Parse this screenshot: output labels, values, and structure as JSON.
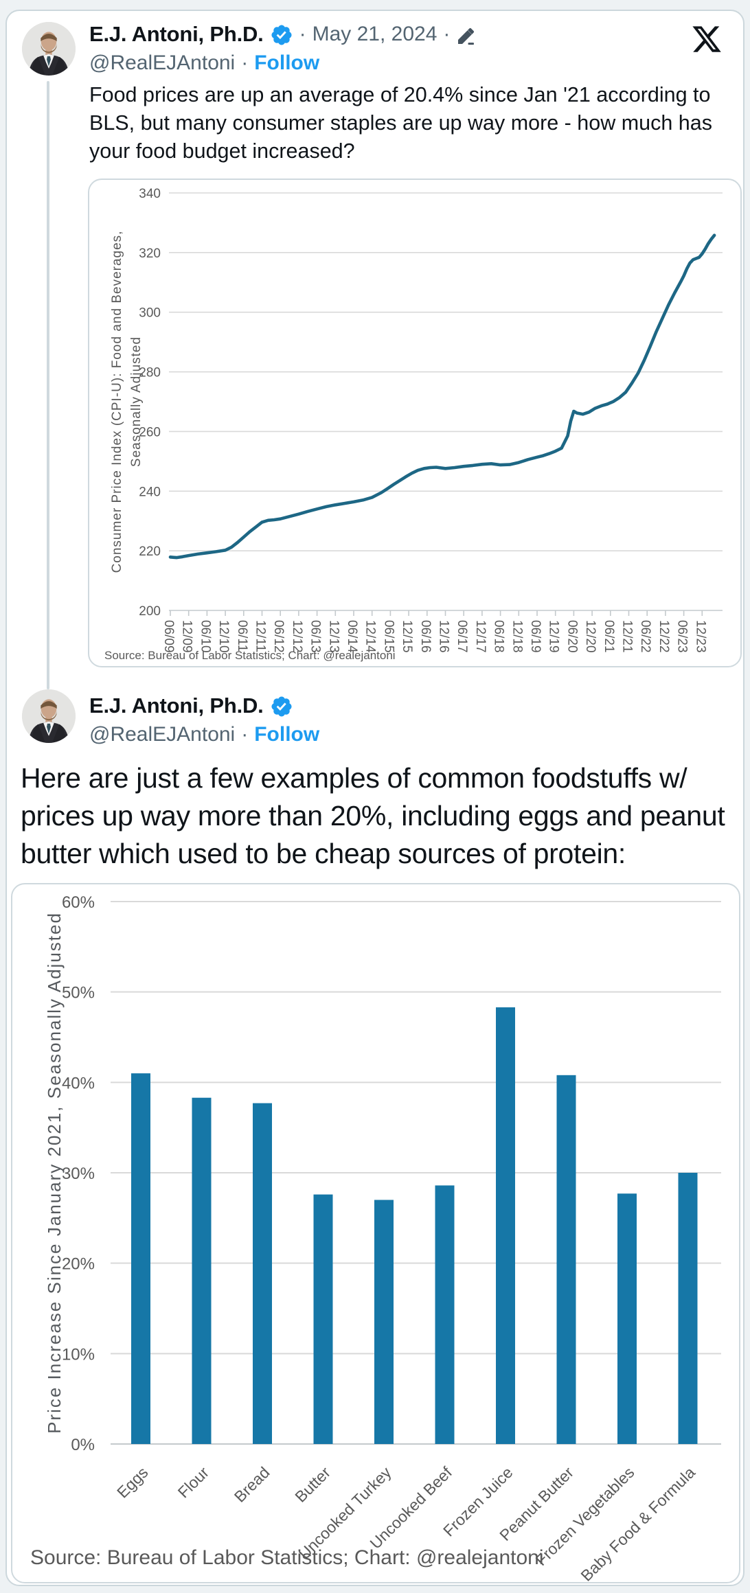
{
  "colors": {
    "accent_blue": "#1d9bf0",
    "text_dark": "#0f1419",
    "text_gray": "#536471",
    "line_series": "#1d6785",
    "bar_fill": "#1677a7",
    "gridline": "#d9d9d9",
    "axis_line": "#c4cacd",
    "chart_text": "#595959"
  },
  "tweet1": {
    "name": "E.J. Antoni, Ph.D.",
    "sep1": "·",
    "date": "May 21, 2024",
    "sep2": "·",
    "handle": "@RealEJAntoni",
    "sep3": "·",
    "follow_label": "Follow",
    "lines": [
      "Food prices are up an average of 20.4% since Jan '21 according to",
      "BLS, but many consumer staples are up way more - how much has",
      "your food budget increased?"
    ]
  },
  "tweet2": {
    "name": "E.J. Antoni, Ph.D.",
    "handle": "@RealEJAntoni",
    "sep": "·",
    "follow_label": "Follow",
    "lines": [
      "Here are just a few examples of common foodstuffs w/",
      "prices up way more than 20%, including eggs and peanut",
      "butter which used to be cheap sources of protein:"
    ]
  },
  "icons": {
    "x_logo": "x-logo",
    "verified_badge": "verified-badge-icon",
    "edit_pencil": "edit-pencil-icon",
    "avatar": "profile-photo-man-in-suit"
  },
  "chart_data": [
    {
      "type": "line",
      "title": "",
      "xlabel": "",
      "ylabel_lines": [
        "Consumer Price Index (CPI-U): Food and Beverages,",
        "Seasonally Adjusted"
      ],
      "ylim": [
        200,
        340
      ],
      "ytick_step": 20,
      "grid": true,
      "legend": "none",
      "x_tick_labels": [
        "06/09",
        "12/09",
        "06/10",
        "12/10",
        "06/11",
        "12/11",
        "06/12",
        "12/12",
        "06/13",
        "12/13",
        "06/14",
        "12/14",
        "06/15",
        "12/15",
        "06/16",
        "12/16",
        "06/17",
        "12/17",
        "06/18",
        "12/18",
        "06/19",
        "12/19",
        "06/20",
        "12/20",
        "06/21",
        "12/21",
        "06/22",
        "12/22",
        "06/23",
        "12/23"
      ],
      "x_tick_interval_months": 6,
      "points_months_value": [
        [
          0,
          217.9
        ],
        [
          2,
          217.7
        ],
        [
          4,
          218.0
        ],
        [
          6,
          218.4
        ],
        [
          9,
          218.9
        ],
        [
          12,
          219.3
        ],
        [
          15,
          219.7
        ],
        [
          18,
          220.2
        ],
        [
          20,
          221.2
        ],
        [
          22,
          222.8
        ],
        [
          24,
          224.6
        ],
        [
          26,
          226.4
        ],
        [
          28,
          228.0
        ],
        [
          30,
          229.6
        ],
        [
          32,
          230.2
        ],
        [
          34,
          230.4
        ],
        [
          36,
          230.7
        ],
        [
          39,
          231.5
        ],
        [
          42,
          232.3
        ],
        [
          45,
          233.2
        ],
        [
          48,
          234.0
        ],
        [
          51,
          234.8
        ],
        [
          54,
          235.4
        ],
        [
          57,
          235.9
        ],
        [
          60,
          236.4
        ],
        [
          63,
          237.0
        ],
        [
          66,
          237.9
        ],
        [
          69,
          239.5
        ],
        [
          71,
          240.8
        ],
        [
          73,
          242.2
        ],
        [
          75,
          243.5
        ],
        [
          77,
          244.8
        ],
        [
          79,
          246.0
        ],
        [
          81,
          247.0
        ],
        [
          83,
          247.6
        ],
        [
          85,
          247.9
        ],
        [
          87,
          248.0
        ],
        [
          90,
          247.6
        ],
        [
          93,
          247.9
        ],
        [
          96,
          248.3
        ],
        [
          99,
          248.6
        ],
        [
          102,
          249.0
        ],
        [
          105,
          249.2
        ],
        [
          108,
          248.8
        ],
        [
          111,
          248.9
        ],
        [
          114,
          249.6
        ],
        [
          117,
          250.6
        ],
        [
          120,
          251.4
        ],
        [
          122,
          251.9
        ],
        [
          124,
          252.6
        ],
        [
          126,
          253.4
        ],
        [
          128,
          254.4
        ],
        [
          130,
          258.5
        ],
        [
          131,
          263.5
        ],
        [
          132,
          266.8
        ],
        [
          133,
          266.2
        ],
        [
          135,
          265.8
        ],
        [
          137,
          266.5
        ],
        [
          139,
          267.8
        ],
        [
          141,
          268.6
        ],
        [
          143,
          269.2
        ],
        [
          145,
          270.1
        ],
        [
          147,
          271.4
        ],
        [
          149,
          273.2
        ],
        [
          151,
          276.2
        ],
        [
          153,
          279.5
        ],
        [
          155,
          283.8
        ],
        [
          157,
          288.5
        ],
        [
          159,
          293.5
        ],
        [
          161,
          298.0
        ],
        [
          163,
          302.5
        ],
        [
          165,
          306.5
        ],
        [
          167,
          310.2
        ],
        [
          168,
          312.2
        ],
        [
          169,
          314.6
        ],
        [
          170,
          316.5
        ],
        [
          171,
          317.6
        ],
        [
          172,
          318.0
        ],
        [
          173,
          318.4
        ],
        [
          174,
          319.6
        ],
        [
          175,
          321.2
        ],
        [
          176,
          323.0
        ],
        [
          177,
          324.5
        ],
        [
          178,
          325.8
        ]
      ],
      "source": "Source: Bureau of Labor Statistics; Chart: @realejantoni"
    },
    {
      "type": "bar",
      "title": "",
      "xlabel": "",
      "ylabel": "Price Increase Since January 2021, Seasonally Adjusted",
      "ylim": [
        0,
        60
      ],
      "ytick_step": 10,
      "unit": "%",
      "grid": true,
      "legend": "none",
      "categories": [
        "Eggs",
        "Flour",
        "Bread",
        "Butter",
        "Uncooked Turkey",
        "Uncooked Beef",
        "Frozen Juice",
        "Peanut Butter",
        "Frozen Vegetables",
        "Baby Food & Formula"
      ],
      "values": [
        41.0,
        38.3,
        37.7,
        27.6,
        27.0,
        28.6,
        48.3,
        40.8,
        27.7,
        30.0
      ],
      "source": "Source: Bureau of Labor Statistics; Chart: @realejantoni"
    }
  ]
}
